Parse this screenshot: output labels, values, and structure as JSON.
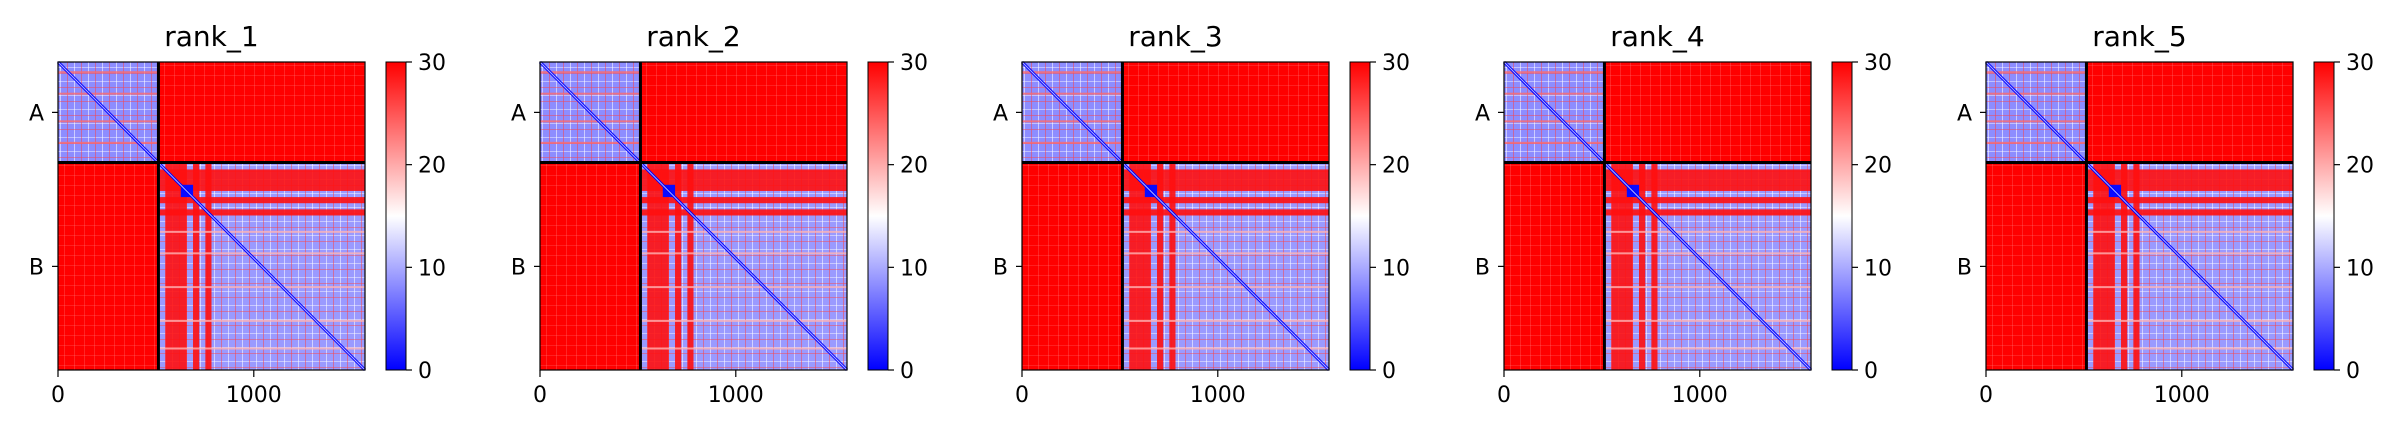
{
  "chart_data": {
    "type": "heatmap",
    "colormap": {
      "name": "bwr",
      "colors": [
        "#0000ff",
        "#ffffff",
        "#ff0000"
      ]
    },
    "clim": [
      0,
      30
    ],
    "colorbar_ticks": [
      "0",
      "10",
      "20",
      "30"
    ],
    "x_ticks": [
      0,
      1000
    ],
    "x_range": [
      0,
      1568
    ],
    "chains": [
      {
        "label": "A",
        "start": 0,
        "end": 513
      },
      {
        "label": "B",
        "start": 513,
        "end": 1568
      }
    ],
    "panels": [
      {
        "title": "rank_1"
      },
      {
        "title": "rank_2"
      },
      {
        "title": "rank_3"
      },
      {
        "title": "rank_4"
      },
      {
        "title": "rank_5"
      }
    ]
  }
}
